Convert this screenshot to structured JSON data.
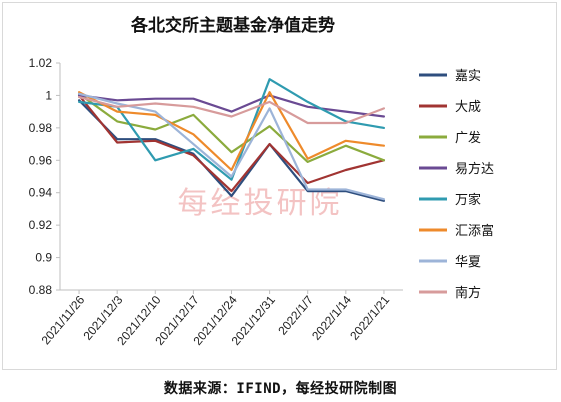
{
  "chart_data": {
    "type": "line",
    "title": "各北交所主题基金净值走势",
    "categories": [
      "2021/11/26",
      "2021/12/3",
      "2021/12/10",
      "2021/12/17",
      "2021/12/24",
      "2021/12/31",
      "2022/1/7",
      "2022/1/14",
      "2022/1/21"
    ],
    "ylim": [
      0.88,
      1.02
    ],
    "yticks": [
      "0.88",
      "0.9",
      "0.92",
      "0.94",
      "0.96",
      "0.98",
      "1",
      "1.02"
    ],
    "legend_position": "right",
    "grid": false,
    "series": [
      {
        "name": "嘉实",
        "color": "#2e4e7e",
        "values": [
          0.997,
          0.973,
          0.973,
          0.964,
          0.938,
          0.97,
          0.941,
          0.941,
          0.935
        ]
      },
      {
        "name": "大成",
        "color": "#a13432",
        "values": [
          1.0,
          0.971,
          0.972,
          0.963,
          0.941,
          0.97,
          0.946,
          0.954,
          0.96
        ]
      },
      {
        "name": "广发",
        "color": "#8bab3d",
        "values": [
          1.001,
          0.984,
          0.979,
          0.988,
          0.965,
          0.981,
          0.959,
          0.969,
          0.96
        ]
      },
      {
        "name": "易方达",
        "color": "#6a4a93",
        "values": [
          1.0,
          0.997,
          0.998,
          0.998,
          0.99,
          1.0,
          0.993,
          0.99,
          0.987
        ]
      },
      {
        "name": "万家",
        "color": "#2f9bb0",
        "values": [
          0.996,
          0.993,
          0.96,
          0.967,
          0.948,
          1.01,
          0.996,
          0.984,
          0.98
        ]
      },
      {
        "name": "汇添富",
        "color": "#ee8a2b",
        "values": [
          1.002,
          0.99,
          0.988,
          0.976,
          0.954,
          1.002,
          0.961,
          0.972,
          0.969
        ]
      },
      {
        "name": "华夏",
        "color": "#9db4d8",
        "values": [
          1.001,
          0.995,
          0.99,
          0.97,
          0.95,
          0.992,
          0.942,
          0.942,
          0.936
        ]
      },
      {
        "name": "南方",
        "color": "#d79b9b",
        "values": [
          0.999,
          0.993,
          0.995,
          0.993,
          0.987,
          0.996,
          0.983,
          0.983,
          0.992
        ]
      }
    ]
  },
  "watermark": "每经投研院",
  "source_note": "数据来源：IFIND，每经投研院制图"
}
